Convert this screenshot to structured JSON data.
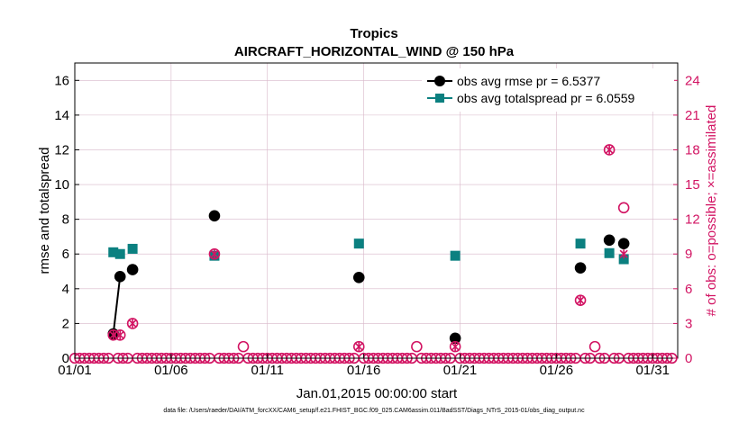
{
  "chart_data": {
    "type": "scatter",
    "title": "Tropics",
    "subtitle": "AIRCRAFT_HORIZONTAL_WIND @ 150 hPa",
    "xlabel": "Jan.01,2015 00:00:00 start",
    "ylabel_left": "rmse and totalspread",
    "ylabel_right": "# of obs: o=possible; ×=assimilated",
    "footnote": "data file: /Users/raeder/DAI/ATM_forcXX/CAM6_setup/f.e21.FHIST_BGC.f09_025.CAM6assim.011/BadSST/Diags_NTrS_2015-01/obs_diag_output.nc",
    "xlim": [
      1,
      32.3
    ],
    "ylim_left": [
      0,
      17
    ],
    "ylim_right": [
      0,
      25.5
    ],
    "x_ticks": [
      1,
      6,
      11,
      16,
      21,
      26,
      31
    ],
    "x_tick_labels": [
      "01/01",
      "01/06",
      "01/11",
      "01/16",
      "01/21",
      "01/26",
      "01/31"
    ],
    "y_left_ticks": [
      "0",
      "2",
      "4",
      "6",
      "8",
      "10",
      "12",
      "14",
      "16"
    ],
    "y_right_ticks": [
      "0",
      "3",
      "6",
      "9",
      "12",
      "15",
      "18",
      "21",
      "24"
    ],
    "colors": {
      "rmse": "#000000",
      "spread": "#0b8080",
      "count": "#d21463",
      "grid": "#d8b7c9"
    },
    "legend": [
      "obs avg rmse pr = 6.5377",
      "obs avg totalspread pr = 6.0559"
    ],
    "series": [
      {
        "name": "obs avg rmse pr = 6.5377",
        "points": [
          [
            3.0,
            1.4
          ],
          [
            3.35,
            4.7
          ],
          [
            null,
            null
          ],
          [
            4.0,
            5.1
          ],
          [
            null,
            null
          ],
          [
            8.25,
            8.2
          ],
          [
            null,
            null
          ],
          [
            15.75,
            4.65
          ],
          [
            null,
            null
          ],
          [
            20.75,
            1.15
          ],
          [
            null,
            null
          ],
          [
            27.25,
            5.2
          ],
          [
            null,
            null
          ],
          [
            28.75,
            6.8
          ],
          [
            null,
            null
          ],
          [
            29.5,
            6.6
          ]
        ]
      },
      {
        "name": "obs avg totalspread pr = 6.0559",
        "points": [
          [
            3.0,
            6.1
          ],
          [
            3.35,
            6.0
          ],
          [
            null,
            null
          ],
          [
            4.0,
            6.3
          ],
          [
            null,
            null
          ],
          [
            8.25,
            5.9
          ],
          [
            null,
            null
          ],
          [
            15.75,
            6.6
          ],
          [
            null,
            null
          ],
          [
            20.75,
            5.9
          ],
          [
            null,
            null
          ],
          [
            27.25,
            6.6
          ],
          [
            null,
            null
          ],
          [
            28.75,
            6.05
          ],
          [
            null,
            null
          ],
          [
            29.5,
            5.7
          ]
        ]
      }
    ],
    "obs_possible": [
      [
        3.0,
        2
      ],
      [
        3.35,
        2
      ],
      [
        4.0,
        3
      ],
      [
        8.25,
        9
      ],
      [
        9.75,
        1
      ],
      [
        15.75,
        1
      ],
      [
        18.75,
        1
      ],
      [
        20.75,
        1
      ],
      [
        27.25,
        5
      ],
      [
        28.0,
        1
      ],
      [
        28.75,
        18
      ],
      [
        29.5,
        13
      ]
    ],
    "obs_assimilated": [
      [
        3.0,
        2
      ],
      [
        3.35,
        2
      ],
      [
        4.0,
        3
      ],
      [
        8.25,
        9
      ],
      [
        15.75,
        1
      ],
      [
        20.75,
        1
      ],
      [
        27.25,
        5
      ],
      [
        28.75,
        18
      ],
      [
        29.5,
        9
      ]
    ],
    "zero_count_step": 0.25
  }
}
